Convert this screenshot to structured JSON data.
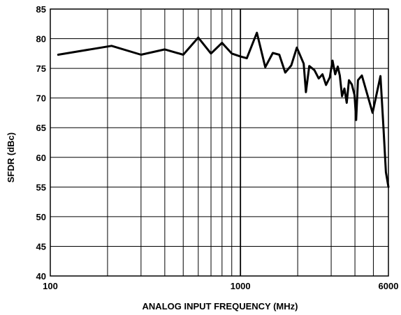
{
  "chart_data": {
    "type": "line",
    "title": "",
    "xlabel": "ANALOG INPUT FREQUENCY (MHz)",
    "ylabel": "SFDR (dBc)",
    "x_scale": "log",
    "xlim": [
      100,
      6000
    ],
    "ylim": [
      40,
      85
    ],
    "grid": true,
    "x_tick_labels": [
      {
        "value": 100,
        "label": "100"
      },
      {
        "value": 1000,
        "label": "1000"
      },
      {
        "value": 6000,
        "label": "6000"
      }
    ],
    "y_ticks": [
      40,
      45,
      50,
      55,
      60,
      65,
      70,
      75,
      80,
      85
    ],
    "x_gridlines": [
      200,
      300,
      400,
      500,
      600,
      700,
      800,
      900,
      1000,
      2000,
      3000,
      4000,
      5000
    ],
    "series": [
      {
        "color": "#000000",
        "points": [
          [
            110,
            77.3
          ],
          [
            210,
            78.8
          ],
          [
            300,
            77.3
          ],
          [
            400,
            78.2
          ],
          [
            500,
            77.3
          ],
          [
            600,
            80.2
          ],
          [
            700,
            77.5
          ],
          [
            800,
            79.3
          ],
          [
            900,
            77.5
          ],
          [
            1000,
            77.0
          ],
          [
            1080,
            76.7
          ],
          [
            1220,
            81.0
          ],
          [
            1350,
            75.2
          ],
          [
            1480,
            77.6
          ],
          [
            1600,
            77.3
          ],
          [
            1720,
            74.3
          ],
          [
            1850,
            75.5
          ],
          [
            1980,
            78.5
          ],
          [
            2150,
            75.8
          ],
          [
            2210,
            71.0
          ],
          [
            2300,
            75.4
          ],
          [
            2450,
            74.7
          ],
          [
            2580,
            73.3
          ],
          [
            2700,
            74.0
          ],
          [
            2820,
            72.2
          ],
          [
            2950,
            73.5
          ],
          [
            3050,
            76.3
          ],
          [
            3150,
            74.0
          ],
          [
            3250,
            75.3
          ],
          [
            3330,
            73.8
          ],
          [
            3420,
            70.3
          ],
          [
            3520,
            71.6
          ],
          [
            3620,
            69.2
          ],
          [
            3720,
            73.0
          ],
          [
            3850,
            72.3
          ],
          [
            3980,
            70.5
          ],
          [
            4060,
            66.3
          ],
          [
            4150,
            73.0
          ],
          [
            4350,
            73.8
          ],
          [
            4950,
            67.5
          ],
          [
            5450,
            73.7
          ],
          [
            5650,
            65.0
          ],
          [
            5820,
            57.5
          ],
          [
            6000,
            55.0
          ]
        ]
      }
    ]
  }
}
